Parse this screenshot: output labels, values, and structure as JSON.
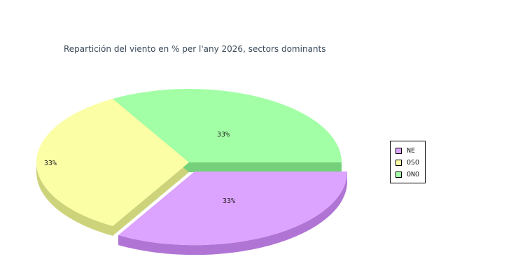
{
  "chart_data": {
    "type": "pie",
    "title": "Repartición del viento en % per l'any 2026, sectors dominants",
    "slices": [
      {
        "name": "NE",
        "value": 33,
        "label": "33%",
        "color": "#dca3ff",
        "side_color": "#b075d4",
        "exploded": true
      },
      {
        "name": "OSO",
        "value": 33,
        "label": "33%",
        "color": "#fbfea5",
        "side_color": "#cdd37a",
        "exploded": false
      },
      {
        "name": "ONO",
        "value": 33,
        "label": "33%",
        "color": "#a3ffa5",
        "side_color": "#74d07a",
        "exploded": false
      }
    ],
    "style": "3d",
    "legend_position": "right"
  }
}
